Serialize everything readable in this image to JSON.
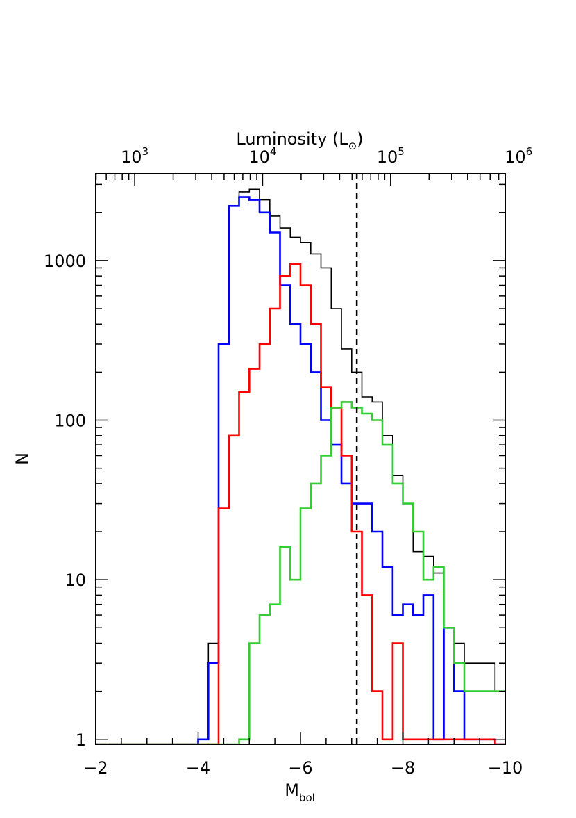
{
  "chart_data": {
    "type": "step-histogram",
    "xlabel": "M",
    "xlabel_sub": "bol",
    "ylabel": "N",
    "top_xlabel": "Luminosity (L",
    "top_xlabel_sub": "⊙",
    "top_xlabel_end": ")",
    "xlim": [
      -2,
      -10
    ],
    "ylim": [
      0.93,
      3500
    ],
    "yscale": "log",
    "x_ticks": [
      {
        "value": -2,
        "label": "−2"
      },
      {
        "value": -4,
        "label": "−4"
      },
      {
        "value": -6,
        "label": "−6"
      },
      {
        "value": -8,
        "label": "−8"
      },
      {
        "value": -10,
        "label": "−10"
      }
    ],
    "y_ticks": [
      {
        "value": 1,
        "label": "1"
      },
      {
        "value": 10,
        "label": "10"
      },
      {
        "value": 100,
        "label": "100"
      },
      {
        "value": 1000,
        "label": "1000"
      }
    ],
    "top_ticks": [
      {
        "value": 1000,
        "base": "10",
        "exp": "3"
      },
      {
        "value": 10000,
        "base": "10",
        "exp": "4"
      },
      {
        "value": 100000,
        "base": "10",
        "exp": "5"
      },
      {
        "value": 1000000,
        "base": "10",
        "exp": "6"
      }
    ],
    "threshold_line": {
      "x": -7.1,
      "style": "dashed"
    },
    "bin_edges": [
      -2.0,
      -2.2,
      -2.4,
      -2.6,
      -2.8,
      -3.0,
      -3.2,
      -3.4,
      -3.6,
      -3.8,
      -4.0,
      -4.2,
      -4.4,
      -4.6,
      -4.8,
      -5.0,
      -5.2,
      -5.4,
      -5.6,
      -5.8,
      -6.0,
      -6.2,
      -6.4,
      -6.6,
      -6.8,
      -7.0,
      -7.2,
      -7.4,
      -7.6,
      -7.8,
      -8.0,
      -8.2,
      -8.4,
      -8.6,
      -8.8,
      -9.0,
      -9.2,
      -9.4,
      -9.6,
      -9.8,
      -10.0
    ],
    "series": [
      {
        "color": "#000000",
        "counts": [
          0.93,
          0.93,
          0.93,
          0.93,
          0.93,
          0.93,
          0.93,
          0.93,
          0.93,
          0.93,
          1,
          4,
          300,
          2200,
          2700,
          2800,
          2400,
          1900,
          1600,
          1400,
          1300,
          1100,
          900,
          500,
          280,
          200,
          140,
          130,
          80,
          45,
          30,
          15,
          14,
          11,
          5,
          4,
          3,
          3,
          3,
          2
        ]
      },
      {
        "color": "#0000ff",
        "counts": [
          0.93,
          0.93,
          0.93,
          0.93,
          0.93,
          0.93,
          0.93,
          0.93,
          0.93,
          0.93,
          1,
          3,
          300,
          2200,
          2500,
          2400,
          2000,
          1500,
          700,
          400,
          300,
          200,
          100,
          70,
          40,
          30,
          30,
          20,
          12,
          6,
          7,
          6,
          8,
          1,
          5,
          2,
          1,
          1,
          1,
          0.93
        ]
      },
      {
        "color": "#ff0000",
        "counts": [
          0.93,
          0.93,
          0.93,
          0.93,
          0.93,
          0.93,
          0.93,
          0.93,
          0.93,
          0.93,
          0.93,
          0.93,
          28,
          80,
          150,
          210,
          300,
          500,
          800,
          950,
          700,
          400,
          160,
          120,
          60,
          20,
          8,
          2,
          1,
          4,
          1,
          1,
          1,
          1,
          1,
          1,
          1,
          1,
          1,
          0.93
        ]
      },
      {
        "color": "#33cc33",
        "counts": [
          0.93,
          0.93,
          0.93,
          0.93,
          0.93,
          0.93,
          0.93,
          0.93,
          0.93,
          0.93,
          0.93,
          0.93,
          0.93,
          0.93,
          1,
          4,
          6,
          7,
          16,
          10,
          28,
          40,
          60,
          120,
          130,
          120,
          110,
          100,
          70,
          40,
          30,
          20,
          10,
          12,
          5,
          3,
          2,
          2,
          2,
          2
        ]
      }
    ]
  }
}
